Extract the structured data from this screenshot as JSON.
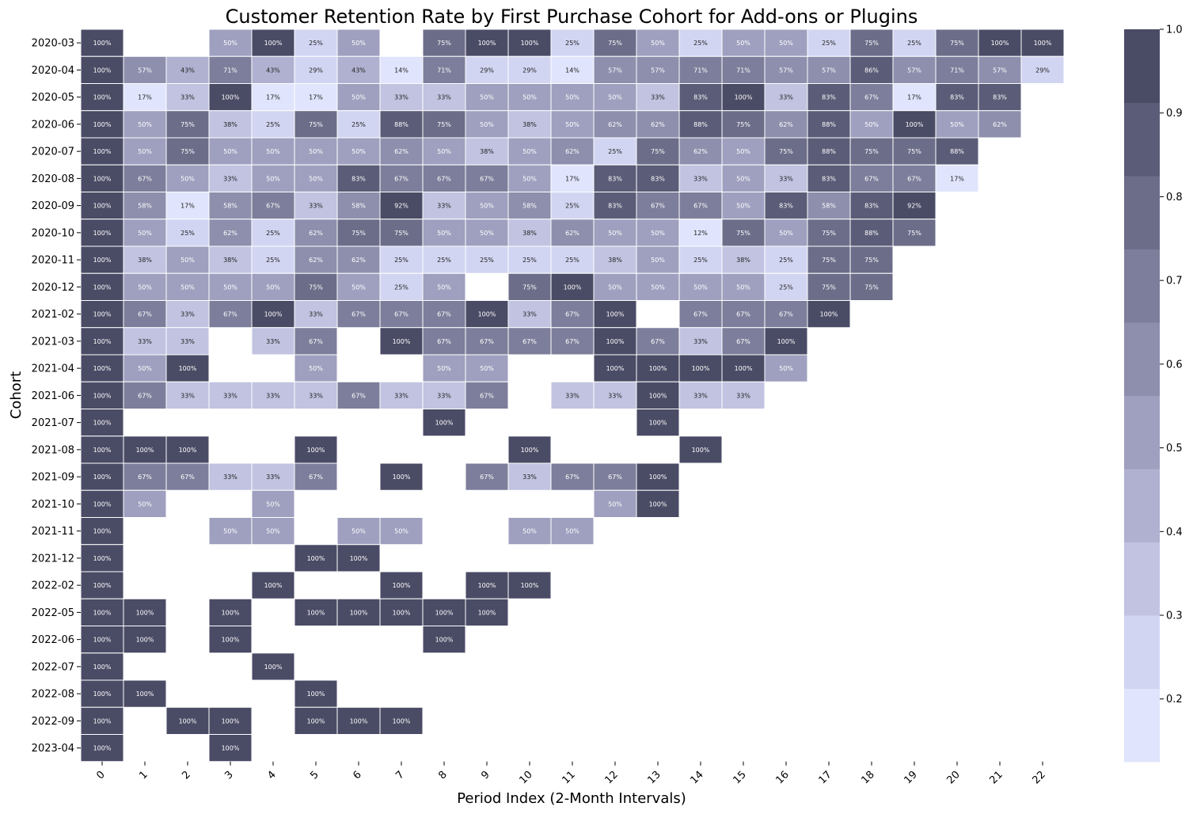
{
  "chart_data": {
    "type": "heatmap",
    "title": "Customer Retention Rate by First Purchase Cohort for Add-ons or Plugins",
    "xlabel": "Period Index (2-Month Intervals)",
    "ylabel": "Cohort",
    "x_categories": [
      "0",
      "1",
      "2",
      "3",
      "4",
      "5",
      "6",
      "7",
      "8",
      "9",
      "10",
      "11",
      "12",
      "13",
      "14",
      "15",
      "16",
      "17",
      "18",
      "19",
      "20",
      "21",
      "22"
    ],
    "y_categories": [
      "2020-03",
      "2020-04",
      "2020-05",
      "2020-06",
      "2020-07",
      "2020-08",
      "2020-09",
      "2020-10",
      "2020-11",
      "2020-12",
      "2021-02",
      "2021-03",
      "2021-04",
      "2021-06",
      "2021-07",
      "2021-08",
      "2021-09",
      "2021-10",
      "2021-11",
      "2021-12",
      "2022-02",
      "2022-05",
      "2022-06",
      "2022-07",
      "2022-08",
      "2022-09",
      "2023-04"
    ],
    "values": [
      [
        100,
        null,
        null,
        50,
        100,
        25,
        50,
        null,
        75,
        100,
        100,
        25,
        75,
        50,
        25,
        50,
        50,
        25,
        75,
        25,
        75,
        100,
        100
      ],
      [
        100,
        57,
        43,
        71,
        43,
        29,
        43,
        14,
        71,
        29,
        29,
        14,
        57,
        57,
        71,
        71,
        57,
        57,
        86,
        57,
        71,
        57,
        29
      ],
      [
        100,
        17,
        33,
        100,
        17,
        17,
        50,
        33,
        33,
        50,
        50,
        50,
        50,
        33,
        83,
        100,
        33,
        83,
        67,
        17,
        83,
        83
      ],
      [
        100,
        50,
        75,
        38,
        25,
        75,
        25,
        88,
        75,
        50,
        38,
        50,
        62,
        62,
        88,
        75,
        62,
        88,
        50,
        100,
        50,
        62
      ],
      [
        100,
        50,
        75,
        50,
        50,
        50,
        50,
        62,
        50,
        38,
        50,
        62,
        25,
        75,
        62,
        50,
        75,
        88,
        75,
        75,
        88
      ],
      [
        100,
        67,
        50,
        33,
        50,
        50,
        83,
        67,
        67,
        67,
        50,
        17,
        83,
        83,
        33,
        50,
        33,
        83,
        67,
        67,
        17
      ],
      [
        100,
        58,
        17,
        58,
        67,
        33,
        58,
        92,
        33,
        50,
        58,
        25,
        83,
        67,
        67,
        50,
        83,
        58,
        83,
        92
      ],
      [
        100,
        50,
        25,
        62,
        25,
        62,
        75,
        75,
        50,
        50,
        38,
        62,
        50,
        50,
        12,
        75,
        50,
        75,
        88,
        75
      ],
      [
        100,
        38,
        50,
        38,
        25,
        62,
        62,
        25,
        25,
        25,
        25,
        25,
        38,
        50,
        25,
        38,
        25,
        75,
        75
      ],
      [
        100,
        50,
        50,
        50,
        50,
        75,
        50,
        25,
        50,
        null,
        75,
        100,
        50,
        50,
        50,
        50,
        25,
        75,
        75
      ],
      [
        100,
        67,
        33,
        67,
        100,
        33,
        67,
        67,
        67,
        100,
        33,
        67,
        100,
        null,
        67,
        67,
        67,
        100
      ],
      [
        100,
        33,
        33,
        null,
        33,
        67,
        null,
        100,
        67,
        67,
        67,
        67,
        100,
        67,
        33,
        67,
        100
      ],
      [
        100,
        50,
        100,
        null,
        null,
        50,
        null,
        null,
        50,
        50,
        null,
        null,
        100,
        100,
        100,
        100,
        50
      ],
      [
        100,
        67,
        33,
        33,
        33,
        33,
        67,
        33,
        33,
        67,
        null,
        33,
        33,
        100,
        33,
        33
      ],
      [
        100,
        null,
        null,
        null,
        null,
        null,
        null,
        null,
        100,
        null,
        null,
        null,
        null,
        100
      ],
      [
        100,
        100,
        100,
        null,
        null,
        100,
        null,
        null,
        null,
        null,
        100,
        null,
        null,
        null,
        100
      ],
      [
        100,
        67,
        67,
        33,
        33,
        67,
        null,
        100,
        null,
        67,
        33,
        67,
        67,
        100
      ],
      [
        100,
        50,
        null,
        null,
        50,
        null,
        null,
        null,
        null,
        null,
        null,
        null,
        50,
        100
      ],
      [
        100,
        null,
        null,
        50,
        50,
        null,
        50,
        50,
        null,
        null,
        50,
        50
      ],
      [
        100,
        null,
        null,
        null,
        null,
        100,
        100
      ],
      [
        100,
        null,
        null,
        null,
        100,
        null,
        null,
        100,
        null,
        100,
        100
      ],
      [
        100,
        100,
        null,
        100,
        null,
        100,
        100,
        100,
        100,
        100
      ],
      [
        100,
        100,
        null,
        100,
        null,
        null,
        null,
        null,
        100
      ],
      [
        100,
        null,
        null,
        null,
        100
      ],
      [
        100,
        100,
        null,
        null,
        null,
        100
      ],
      [
        100,
        null,
        100,
        100,
        null,
        100,
        100,
        100
      ],
      [
        100,
        null,
        null,
        100
      ]
    ],
    "value_format": "percent",
    "colorbar": {
      "ticks": [
        "0.2",
        "0.3",
        "0.4",
        "0.5",
        "0.6",
        "0.7",
        "0.8",
        "0.9",
        "1.0"
      ],
      "range": [
        0.125,
        1.0
      ],
      "levels": 10
    },
    "colors": [
      "#e0e4fc",
      "#d2d5f2",
      "#c1c3e1",
      "#b0b1d0",
      "#9fa0bf",
      "#8e8fad",
      "#7d7e9b",
      "#6c6d89",
      "#5b5c77",
      "#4a4b65"
    ],
    "label_light": "#ffffff",
    "label_dark": "#222222"
  }
}
